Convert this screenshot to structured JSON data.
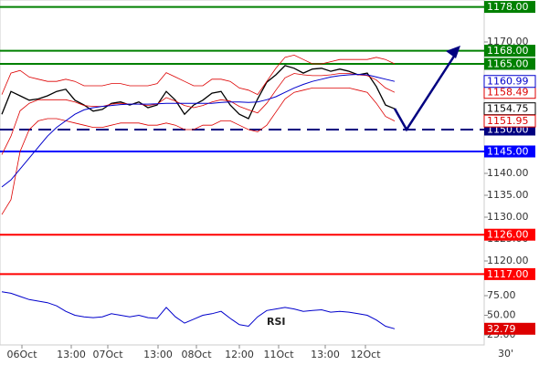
{
  "chart_data": [
    {
      "type": "line",
      "x": [
        0,
        1,
        2,
        3,
        4,
        5,
        6,
        7,
        8,
        9,
        10,
        11,
        12,
        13,
        14,
        15,
        16,
        17,
        18,
        19,
        20,
        21,
        22,
        23,
        24,
        25,
        26,
        27,
        28,
        29,
        30,
        31,
        32,
        33,
        34,
        35,
        36,
        37,
        38,
        39,
        40,
        41,
        42,
        43
      ],
      "xlim": [
        -0.2,
        52.8
      ],
      "ylim": [
        1115,
        1179.58
      ],
      "yticks": [
        {
          "value": 1120,
          "label": "1120.00"
        },
        {
          "value": 1125,
          "label": "1125.00"
        },
        {
          "value": 1130,
          "label": "1130.00"
        },
        {
          "value": 1135,
          "label": "1135.00"
        },
        {
          "value": 1140,
          "label": "1140.00"
        },
        {
          "value": 1145,
          "label": "1145.00"
        },
        {
          "value": 1150,
          "label": "1150.00"
        },
        {
          "value": 1155,
          "label": "1155.00"
        },
        {
          "value": 1160,
          "label": "1160.00"
        },
        {
          "value": 1165,
          "label": "1165.00"
        },
        {
          "value": 1170,
          "label": "1170.00"
        }
      ],
      "xticks": [
        {
          "value": 2.2,
          "label": "06Oct"
        },
        {
          "value": 7.6,
          "label": "13:00"
        },
        {
          "value": 11.6,
          "label": "07Oct"
        },
        {
          "value": 17.1,
          "label": "13:00"
        },
        {
          "value": 21.3,
          "label": "08Oct"
        },
        {
          "value": 26,
          "label": "12:00"
        },
        {
          "value": 30.3,
          "label": "11Oct"
        },
        {
          "value": 35.4,
          "label": "13:00"
        },
        {
          "value": 39.8,
          "label": "12Oct"
        }
      ],
      "timeframe": "30'",
      "series": [
        {
          "color": "#000000",
          "width": 1.3,
          "last_box": "outline",
          "values": [
            1153.5,
            1158.7,
            1157.7,
            1156.7,
            1157,
            1157.7,
            1158.7,
            1159.2,
            1156.7,
            1155.6,
            1154.2,
            1154.6,
            1156,
            1156.3,
            1155.6,
            1156.3,
            1155,
            1155.6,
            1158.7,
            1156.7,
            1153.5,
            1155.6,
            1156.7,
            1158.3,
            1158.7,
            1155.6,
            1153.5,
            1152.5,
            1157,
            1160.8,
            1162.5,
            1164.6,
            1164,
            1162.9,
            1163.8,
            1164,
            1163.3,
            1163.8,
            1163.3,
            1162.5,
            1162.9,
            1159.8,
            1155.6,
            1154.75
          ]
        },
        {
          "color": "#dd0000",
          "width": 0.8,
          "values": [
            1158,
            1162.9,
            1163.5,
            1162,
            1161.5,
            1161,
            1161,
            1161.5,
            1161,
            1160,
            1160,
            1160,
            1160.5,
            1160.5,
            1160,
            1160,
            1160,
            1160.5,
            1163,
            1162,
            1161,
            1160,
            1160,
            1161.5,
            1161.5,
            1161,
            1159.5,
            1159,
            1158,
            1161,
            1164,
            1166.5,
            1167,
            1166,
            1165,
            1165,
            1165.5,
            1166,
            1166,
            1166,
            1166,
            1166.5,
            1166,
            1165
          ]
        },
        {
          "color": "#dd0000",
          "width": 0.8,
          "last_box": "outline",
          "values": [
            1144.3,
            1148.5,
            1154.3,
            1156,
            1156.8,
            1156.8,
            1156.8,
            1156.8,
            1156.3,
            1155.5,
            1155.3,
            1155.3,
            1155.8,
            1156,
            1155.8,
            1155.8,
            1155.5,
            1155.8,
            1157.3,
            1156.5,
            1155.5,
            1155,
            1155.5,
            1156.3,
            1156.8,
            1156.5,
            1155.3,
            1154.5,
            1153.8,
            1156,
            1159,
            1161.8,
            1162.8,
            1162.5,
            1162.3,
            1162.3,
            1162.5,
            1162.8,
            1162.8,
            1162.5,
            1162.3,
            1161.3,
            1159.5,
            1158.49
          ]
        },
        {
          "color": "#dd0000",
          "width": 0.8,
          "last_box": "outline",
          "values": [
            1130.6,
            1134,
            1145,
            1150,
            1152,
            1152.5,
            1152.5,
            1152,
            1151.5,
            1151,
            1150.5,
            1150.5,
            1151,
            1151.5,
            1151.5,
            1151.5,
            1151,
            1151,
            1151.5,
            1151,
            1150,
            1150,
            1151,
            1151,
            1152,
            1152,
            1151,
            1150,
            1149.5,
            1151,
            1154,
            1157,
            1158.5,
            1159,
            1159.5,
            1159.5,
            1159.5,
            1159.5,
            1159.5,
            1159,
            1158.5,
            1156,
            1153,
            1151.95
          ]
        },
        {
          "color": "#0000cc",
          "width": 1,
          "last_box": "outline",
          "values": [
            1136.9,
            1138.5,
            1141,
            1143.5,
            1146,
            1148.5,
            1150.5,
            1152,
            1153.5,
            1154.5,
            1155,
            1155.3,
            1155.5,
            1155.7,
            1155.8,
            1155.8,
            1155.8,
            1155.9,
            1156,
            1156,
            1156,
            1156,
            1156,
            1156,
            1156.2,
            1156.3,
            1156.3,
            1156.2,
            1156.3,
            1156.8,
            1157.5,
            1158.5,
            1159.5,
            1160.3,
            1161,
            1161.5,
            1162,
            1162.3,
            1162.5,
            1162.6,
            1162.5,
            1162,
            1161.5,
            1160.99
          ]
        }
      ],
      "levels": [
        {
          "value": 1178,
          "label": "1178.00",
          "color": "#008000",
          "style": "solid"
        },
        {
          "value": 1168,
          "label": "1168.00",
          "color": "#008000",
          "style": "solid"
        },
        {
          "value": 1165,
          "label": "1165.00",
          "color": "#008000",
          "style": "solid"
        },
        {
          "value": 1150,
          "label": "1150.00",
          "color": "#000080",
          "style": "dashed"
        },
        {
          "value": 1145,
          "label": "1145.00",
          "color": "#0000ff",
          "style": "solid"
        },
        {
          "value": 1126,
          "label": "1126.00",
          "color": "#ff0000",
          "style": "solid"
        },
        {
          "value": 1117,
          "label": "1117.00",
          "color": "#ff0000",
          "style": "solid"
        }
      ]
    },
    {
      "type": "line",
      "title": "RSI",
      "x": [
        0,
        1,
        2,
        3,
        4,
        5,
        6,
        7,
        8,
        9,
        10,
        11,
        12,
        13,
        14,
        15,
        16,
        17,
        18,
        19,
        20,
        21,
        22,
        23,
        24,
        25,
        26,
        27,
        28,
        29,
        30,
        31,
        32,
        33,
        34,
        35,
        36,
        37,
        38,
        39,
        40,
        41,
        42,
        43
      ],
      "xlim": [
        -0.2,
        52.8
      ],
      "ylim": [
        12.2,
        102.9
      ],
      "yticks": [
        {
          "value": 25,
          "label": "25.00"
        },
        {
          "value": 50,
          "label": "50.00"
        },
        {
          "value": 75,
          "label": "75.00"
        },
        {
          "value": 100,
          "label": "100.00"
        }
      ],
      "series": [
        {
          "color": "#0000cc",
          "width": 1,
          "last_box": "filled",
          "box_color": "#dd0000",
          "values": [
            80,
            78,
            74,
            70,
            68,
            66,
            62,
            55,
            50,
            48,
            47,
            48,
            52,
            50,
            48,
            50,
            47,
            46,
            60,
            48,
            40,
            45,
            50,
            52,
            55,
            46,
            38,
            36,
            48,
            56,
            58,
            60,
            58,
            55,
            56,
            57,
            54,
            55,
            54,
            52,
            50,
            44,
            36,
            32.79
          ]
        }
      ]
    }
  ]
}
